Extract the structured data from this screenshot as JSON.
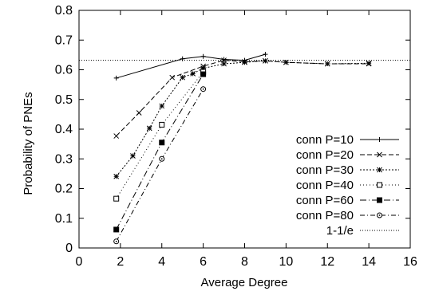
{
  "chart_data": {
    "type": "line",
    "xlabel": "Average Degree",
    "ylabel": "Probability of PNEs",
    "xlim": [
      0,
      16
    ],
    "ylim": [
      0,
      0.8
    ],
    "xticks": [
      "0",
      "2",
      "4",
      "6",
      "8",
      "10",
      "12",
      "14",
      "16"
    ],
    "yticks": [
      "0",
      "0.1",
      "0.2",
      "0.3",
      "0.4",
      "0.5",
      "0.6",
      "0.7",
      "0.8"
    ],
    "grid": false,
    "legend_position": "bottom-right",
    "series": [
      {
        "name": "conn P=10",
        "marker": "plus",
        "dash": "",
        "x": [
          1.8,
          5,
          6,
          7,
          8,
          9
        ],
        "y": [
          0.572,
          0.637,
          0.645,
          0.635,
          0.632,
          0.652
        ]
      },
      {
        "name": "conn P=20",
        "marker": "cross",
        "dash": "6,3",
        "x": [
          1.8,
          2.9,
          4.5,
          6,
          7,
          8,
          9,
          10,
          12,
          14
        ],
        "y": [
          0.377,
          0.455,
          0.574,
          0.612,
          0.632,
          0.627,
          0.63,
          0.625,
          0.62,
          0.62
        ]
      },
      {
        "name": "conn P=30",
        "marker": "star",
        "dash": "2,2",
        "x": [
          1.8,
          2.6,
          3.4,
          4,
          5,
          5.5,
          6,
          7,
          8,
          9,
          10,
          12,
          14
        ],
        "y": [
          0.241,
          0.31,
          0.403,
          0.478,
          0.574,
          0.587,
          0.605,
          0.62,
          0.625,
          0.63,
          0.625,
          0.62,
          0.622
        ]
      },
      {
        "name": "conn P=40",
        "marker": "square",
        "dash": "1,3",
        "x": [
          1.8,
          4,
          6
        ],
        "y": [
          0.166,
          0.415,
          0.593
        ]
      },
      {
        "name": "conn P=60",
        "marker": "filled-square",
        "dash": "8,3,1,3",
        "x": [
          1.8,
          4,
          6
        ],
        "y": [
          0.062,
          0.355,
          0.585
        ]
      },
      {
        "name": "conn P=80",
        "marker": "circle-dot",
        "dash": "6,3,1,3",
        "x": [
          1.8,
          4,
          6
        ],
        "y": [
          0.022,
          0.3,
          0.535
        ]
      },
      {
        "name": "1-1/e",
        "marker": "none",
        "dash": "1,2",
        "x": [
          0,
          16
        ],
        "y": [
          0.632,
          0.632
        ]
      }
    ]
  }
}
